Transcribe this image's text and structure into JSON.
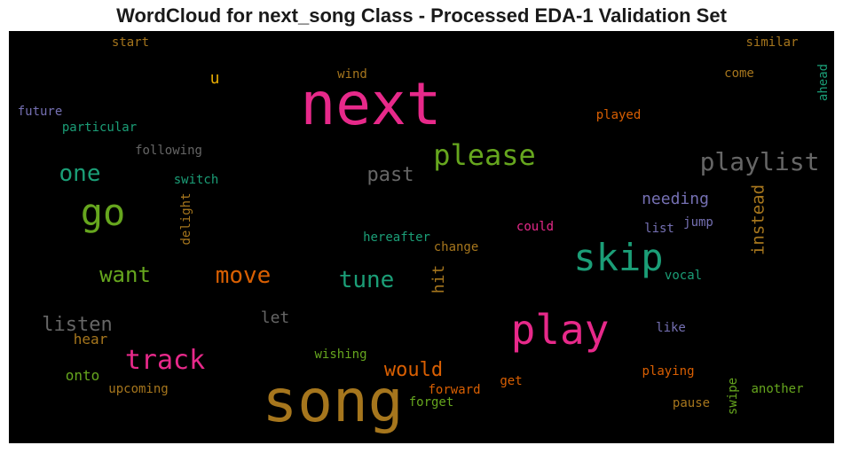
{
  "chart_data": {
    "type": "wordcloud",
    "title": "WordCloud for next_song Class - Processed EDA-1 Validation Set",
    "words": [
      {
        "text": "next",
        "color": "#e7298a"
      },
      {
        "text": "song",
        "color": "#a6761d"
      },
      {
        "text": "play",
        "color": "#e7298a"
      },
      {
        "text": "skip",
        "color": "#1b9e77"
      },
      {
        "text": "go",
        "color": "#66a61e"
      },
      {
        "text": "please",
        "color": "#66a61e"
      },
      {
        "text": "playlist",
        "color": "#666666"
      },
      {
        "text": "track",
        "color": "#e7298a"
      },
      {
        "text": "one",
        "color": "#1b9e77"
      },
      {
        "text": "tune",
        "color": "#1b9e77"
      },
      {
        "text": "move",
        "color": "#d95f02"
      },
      {
        "text": "want",
        "color": "#66a61e"
      },
      {
        "text": "listen",
        "color": "#666666"
      },
      {
        "text": "past",
        "color": "#666666"
      },
      {
        "text": "would",
        "color": "#d95f02"
      },
      {
        "text": "instead",
        "color": "#a6761d"
      },
      {
        "text": "needing",
        "color": "#7570b3"
      },
      {
        "text": "hit",
        "color": "#a6761d"
      },
      {
        "text": "let",
        "color": "#666666"
      },
      {
        "text": "u",
        "color": "#e6ab02"
      },
      {
        "text": "hear",
        "color": "#a6761d"
      },
      {
        "text": "onto",
        "color": "#66a61e"
      },
      {
        "text": "start",
        "color": "#a6761d"
      },
      {
        "text": "similar",
        "color": "#a6761d"
      },
      {
        "text": "wind",
        "color": "#a6761d"
      },
      {
        "text": "come",
        "color": "#a6761d"
      },
      {
        "text": "ahead",
        "color": "#1b9e77"
      },
      {
        "text": "future",
        "color": "#7570b3"
      },
      {
        "text": "particular",
        "color": "#1b9e77"
      },
      {
        "text": "played",
        "color": "#d95f02"
      },
      {
        "text": "following",
        "color": "#666666"
      },
      {
        "text": "switch",
        "color": "#1b9e77"
      },
      {
        "text": "delight",
        "color": "#a6761d"
      },
      {
        "text": "could",
        "color": "#e7298a"
      },
      {
        "text": "list",
        "color": "#7570b3"
      },
      {
        "text": "jump",
        "color": "#7570b3"
      },
      {
        "text": "hereafter",
        "color": "#1b9e77"
      },
      {
        "text": "change",
        "color": "#a6761d"
      },
      {
        "text": "vocal",
        "color": "#1b9e77"
      },
      {
        "text": "like",
        "color": "#7570b3"
      },
      {
        "text": "wishing",
        "color": "#66a61e"
      },
      {
        "text": "upcoming",
        "color": "#a6761d"
      },
      {
        "text": "forward",
        "color": "#d95f02"
      },
      {
        "text": "get",
        "color": "#d95f02"
      },
      {
        "text": "forget",
        "color": "#66a61e"
      },
      {
        "text": "playing",
        "color": "#d95f02"
      },
      {
        "text": "pause",
        "color": "#a6761d"
      },
      {
        "text": "swipe",
        "color": "#66a61e"
      },
      {
        "text": "another",
        "color": "#66a61e"
      }
    ]
  }
}
